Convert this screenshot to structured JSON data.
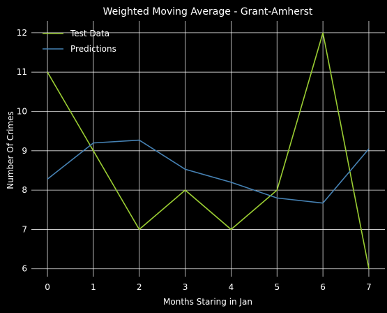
{
  "chart_data": {
    "type": "line",
    "title": "Weighted Moving Average - Grant-Amherst",
    "xlabel": "Months Staring in Jan",
    "ylabel": "Number Of Crimes",
    "x": [
      0,
      1,
      2,
      3,
      4,
      5,
      6,
      7
    ],
    "xlim": [
      -0.35,
      7.35
    ],
    "ylim": [
      5.8,
      12.3
    ],
    "xticks": [
      0,
      1,
      2,
      3,
      4,
      5,
      6,
      7
    ],
    "yticks": [
      6,
      7,
      8,
      9,
      10,
      11,
      12
    ],
    "grid": true,
    "legend": "top-left",
    "series": [
      {
        "name": "Test Data",
        "color": "#9acd32",
        "values": [
          11,
          9,
          7,
          8,
          7,
          8,
          12,
          6
        ]
      },
      {
        "name": "Predictions",
        "color": "#4682b4",
        "values": [
          8.28,
          9.2,
          9.27,
          8.53,
          8.2,
          7.8,
          7.67,
          9.05
        ]
      }
    ]
  }
}
